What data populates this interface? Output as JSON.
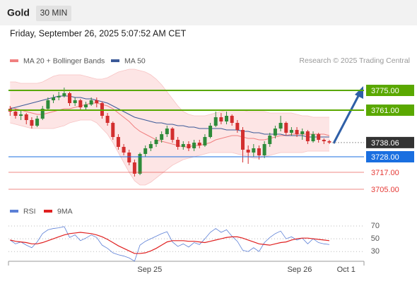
{
  "header": {
    "instrument": "Gold",
    "timeframe": "30 MIN",
    "timestamp": "Friday, September 26, 2025 5:07:52 AM CET"
  },
  "chart_data": [
    {
      "type": "candlestick",
      "legend": [
        {
          "name": "MA 20 + Bollinger Bands",
          "color": "#f08080"
        },
        {
          "name": "MA 50",
          "color": "#3b5998"
        }
      ],
      "source": "Research © 2025 Trading Central",
      "up_color": "#2e8b3a",
      "down_color": "#d32f2f",
      "xlim": [
        -0.3,
        65.4
      ],
      "ylim": [
        3696.5,
        3791.5
      ],
      "xticks": [
        {
          "value": 25.8,
          "label": "Sep 25"
        },
        {
          "value": 53.5,
          "label": "Sep 26"
        },
        {
          "value": 62.1,
          "label": "Oct 1"
        }
      ],
      "open": [
        3762,
        3760,
        3757,
        3758,
        3754,
        3750,
        3755,
        3762,
        3768,
        3770,
        3771,
        3773,
        3766,
        3768,
        3763,
        3765,
        3768,
        3766,
        3757,
        3752,
        3742,
        3735,
        3731,
        3724,
        3716,
        3730,
        3734,
        3737,
        3740,
        3744,
        3748,
        3740,
        3735,
        3737,
        3734,
        3738,
        3736,
        3742,
        3750,
        3756,
        3753,
        3757,
        3752,
        3747,
        3733,
        3731,
        3734,
        3729,
        3737,
        3743,
        3748,
        3752,
        3745,
        3747,
        3744,
        3746,
        3739,
        3744,
        3740,
        3739
      ],
      "high": [
        3764,
        3762,
        3761,
        3759,
        3756,
        3757,
        3764,
        3770,
        3772,
        3774,
        3777,
        3774,
        3770,
        3769,
        3767,
        3770,
        3770,
        3767,
        3759,
        3753,
        3744,
        3737,
        3733,
        3726,
        3731,
        3736,
        3739,
        3742,
        3746,
        3750,
        3749,
        3742,
        3739,
        3739,
        3740,
        3740,
        3744,
        3752,
        3760,
        3759,
        3760,
        3758,
        3754,
        3749,
        3736,
        3737,
        3736,
        3739,
        3745,
        3750,
        3757,
        3753,
        3749,
        3749,
        3748,
        3747,
        3746,
        3745,
        3741,
        3740
      ],
      "low": [
        3757,
        3755,
        3754,
        3751,
        3748,
        3749,
        3754,
        3761,
        3766,
        3768,
        3770,
        3764,
        3764,
        3761,
        3761,
        3764,
        3763,
        3755,
        3750,
        3740,
        3733,
        3729,
        3722,
        3714,
        3715,
        3728,
        3732,
        3735,
        3738,
        3742,
        3738,
        3733,
        3733,
        3732,
        3732,
        3734,
        3735,
        3741,
        3749,
        3751,
        3751,
        3750,
        3745,
        3724,
        3723,
        3728,
        3726,
        3727,
        3735,
        3741,
        3746,
        3743,
        3743,
        3742,
        3740,
        3737,
        3738,
        3738,
        3737,
        3737
      ],
      "close": [
        3760,
        3757,
        3758,
        3754,
        3750,
        3755,
        3762,
        3768,
        3770,
        3771,
        3773,
        3766,
        3768,
        3763,
        3765,
        3768,
        3766,
        3757,
        3752,
        3742,
        3735,
        3731,
        3724,
        3716,
        3730,
        3734,
        3737,
        3740,
        3744,
        3748,
        3740,
        3735,
        3737,
        3734,
        3738,
        3736,
        3742,
        3750,
        3756,
        3753,
        3757,
        3752,
        3747,
        3733,
        3731,
        3734,
        3729,
        3737,
        3743,
        3748,
        3752,
        3745,
        3747,
        3744,
        3746,
        3739,
        3744,
        3740,
        3739,
        3738.06
      ],
      "ma20": [
        3763,
        3762,
        3761,
        3760,
        3759,
        3758,
        3758,
        3759,
        3760,
        3761,
        3762,
        3762,
        3763,
        3764,
        3765,
        3766,
        3766,
        3765,
        3764,
        3762,
        3759,
        3756,
        3753,
        3749,
        3746,
        3744,
        3742,
        3740,
        3739,
        3738,
        3737,
        3736,
        3735,
        3735,
        3736,
        3736,
        3737,
        3738,
        3740,
        3741,
        3742,
        3743,
        3743,
        3742,
        3741,
        3741,
        3740,
        3740,
        3741,
        3742,
        3743,
        3743,
        3744,
        3744,
        3744,
        3744,
        3744,
        3744,
        3744,
        3743
      ],
      "bollinger_upper": [
        3781,
        3781,
        3780,
        3780,
        3780,
        3780,
        3781,
        3783,
        3785,
        3786,
        3786,
        3786,
        3786,
        3786,
        3785,
        3784,
        3783,
        3783,
        3784,
        3786,
        3788,
        3789,
        3790,
        3790,
        3789,
        3788,
        3786,
        3783,
        3779,
        3774,
        3769,
        3764,
        3760,
        3758,
        3757,
        3757,
        3757,
        3758,
        3759,
        3760,
        3761,
        3761,
        3761,
        3761,
        3760,
        3760,
        3760,
        3760,
        3759,
        3759,
        3759,
        3759,
        3759,
        3758,
        3757,
        3757,
        3756,
        3756,
        3756,
        3756
      ],
      "bollinger_lower": [
        3752,
        3751,
        3750,
        3749,
        3748,
        3748,
        3748,
        3748,
        3748,
        3749,
        3750,
        3752,
        3753,
        3754,
        3754,
        3754,
        3752,
        3748,
        3744,
        3738,
        3731,
        3724,
        3717,
        3711,
        3708,
        3708,
        3710,
        3713,
        3716,
        3719,
        3722,
        3724,
        3726,
        3727,
        3728,
        3729,
        3730,
        3731,
        3731,
        3731,
        3731,
        3731,
        3730,
        3729,
        3728,
        3727,
        3727,
        3728,
        3729,
        3730,
        3731,
        3731,
        3731,
        3731,
        3731,
        3732,
        3732,
        3732,
        3732,
        3732
      ],
      "ma50": [
        3762,
        3763,
        3764,
        3765,
        3766,
        3767,
        3768,
        3769,
        3770,
        3771,
        3771,
        3771,
        3770,
        3770,
        3769,
        3769,
        3768,
        3767,
        3766,
        3764,
        3762,
        3760,
        3758,
        3756,
        3755,
        3754,
        3753,
        3752,
        3752,
        3751,
        3751,
        3750,
        3750,
        3749,
        3749,
        3748,
        3748,
        3748,
        3748,
        3748,
        3747,
        3747,
        3747,
        3746,
        3746,
        3745,
        3745,
        3744,
        3744,
        3744,
        3744,
        3743,
        3743,
        3743,
        3743,
        3742,
        3742,
        3742,
        3742,
        3742
      ],
      "levels": [
        {
          "value": 3775,
          "label": "3775.00",
          "color": "#5aa800",
          "style": "box"
        },
        {
          "value": 3761,
          "label": "3761.00",
          "color": "#5aa800",
          "style": "box"
        },
        {
          "value": 3738.06,
          "label": "3738.06",
          "color": "#333333",
          "style": "last"
        },
        {
          "value": 3728,
          "label": "3728.00",
          "color": "#1a6fe0",
          "style": "box"
        },
        {
          "value": 3717,
          "label": "3717.00",
          "color": "#e53935",
          "style": "text"
        },
        {
          "value": 3705,
          "label": "3705.00",
          "color": "#e53935",
          "style": "text"
        }
      ]
    },
    {
      "type": "line",
      "ylim": [
        17,
        92
      ],
      "yticks": [
        30,
        50,
        70
      ],
      "grid": true,
      "series": [
        {
          "name": "RSI",
          "color": "#5b7fd6",
          "values": [
            48,
            42,
            45,
            40,
            36,
            45,
            58,
            64,
            66,
            67,
            69,
            52,
            56,
            47,
            51,
            56,
            52,
            40,
            35,
            28,
            25,
            23,
            20,
            15,
            40,
            46,
            50,
            54,
            58,
            61,
            45,
            38,
            42,
            37,
            44,
            41,
            50,
            60,
            66,
            60,
            64,
            54,
            46,
            32,
            30,
            36,
            30,
            44,
            52,
            58,
            62,
            50,
            53,
            48,
            51,
            42,
            50,
            44,
            42,
            41
          ]
        },
        {
          "name": "9MA",
          "color": "#e02020",
          "values": [
            48,
            46,
            45,
            44,
            42,
            42,
            44,
            47,
            50,
            53,
            56,
            58,
            59,
            60,
            59,
            58,
            56,
            53,
            49,
            44,
            39,
            35,
            31,
            27,
            27,
            28,
            31,
            35,
            40,
            45,
            47,
            47,
            47,
            46,
            46,
            45,
            44,
            46,
            48,
            50,
            52,
            53,
            53,
            51,
            48,
            45,
            42,
            41,
            40,
            42,
            44,
            45,
            48,
            50,
            51,
            51,
            50,
            49,
            48,
            47
          ]
        }
      ]
    }
  ]
}
